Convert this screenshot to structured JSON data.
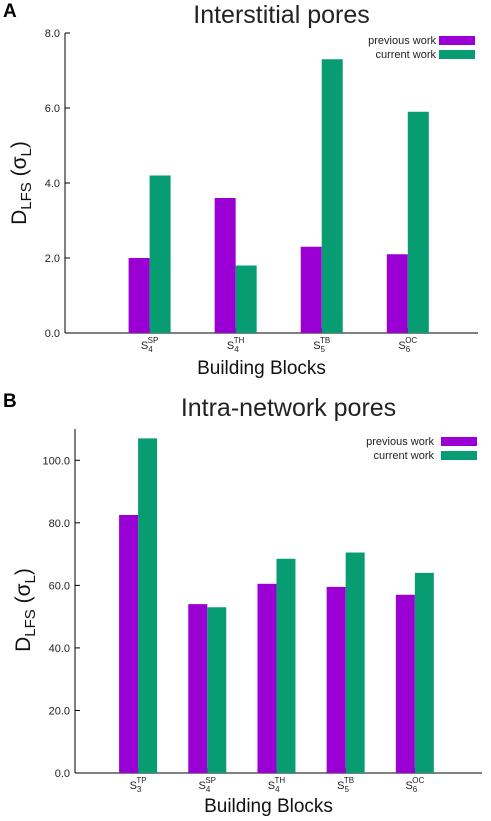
{
  "colors": {
    "previous": "#9a00d4",
    "current": "#079c72",
    "axis": "#000000"
  },
  "chart_data": [
    {
      "type": "bar",
      "panel": "A",
      "title": "Interstitial pores",
      "xlabel": "Building Blocks",
      "ylabel": {
        "main": "D",
        "sub": "LFS",
        "unit_open": " (σ",
        "unit_sub": "L",
        "unit_close": ")"
      },
      "ylim": [
        0,
        8
      ],
      "yticks": [
        "0.0",
        "2.0",
        "4.0",
        "6.0",
        "8.0"
      ],
      "ytick_values": [
        0,
        2,
        4,
        6,
        8
      ],
      "legend_position": "top-right",
      "categories": [
        {
          "base": "S",
          "sub": "4",
          "sup": "SP"
        },
        {
          "base": "S",
          "sub": "4",
          "sup": "TH"
        },
        {
          "base": "S",
          "sub": "5",
          "sup": "TB"
        },
        {
          "base": "S",
          "sub": "6",
          "sup": "OC"
        }
      ],
      "series": [
        {
          "name": "previous work",
          "color_key": "previous",
          "values": [
            2.0,
            3.6,
            2.3,
            2.1
          ]
        },
        {
          "name": "current work",
          "color_key": "current",
          "values": [
            4.2,
            1.8,
            7.3,
            5.9
          ]
        }
      ]
    },
    {
      "type": "bar",
      "panel": "B",
      "title": "Intra-network pores",
      "xlabel": "Building Blocks",
      "ylabel": {
        "main": "D",
        "sub": "LFS",
        "unit_open": " (σ",
        "unit_sub": "L",
        "unit_close": ")"
      },
      "ylim": [
        0,
        110
      ],
      "yticks": [
        "0.0",
        "20.0",
        "40.0",
        "60.0",
        "80.0",
        "100.0"
      ],
      "ytick_values": [
        0,
        20,
        40,
        60,
        80,
        100
      ],
      "legend_position": "top-right",
      "categories": [
        {
          "base": "S",
          "sub": "3",
          "sup": "TP"
        },
        {
          "base": "S",
          "sub": "4",
          "sup": "SP"
        },
        {
          "base": "S",
          "sub": "4",
          "sup": "TH"
        },
        {
          "base": "S",
          "sub": "5",
          "sup": "TB"
        },
        {
          "base": "S",
          "sub": "6",
          "sup": "OC"
        }
      ],
      "series": [
        {
          "name": "previous work",
          "color_key": "previous",
          "values": [
            82.5,
            54.0,
            60.5,
            59.5,
            57.0
          ]
        },
        {
          "name": "current work",
          "color_key": "current",
          "values": [
            107.0,
            53.0,
            68.5,
            70.5,
            64.0
          ]
        }
      ]
    }
  ]
}
